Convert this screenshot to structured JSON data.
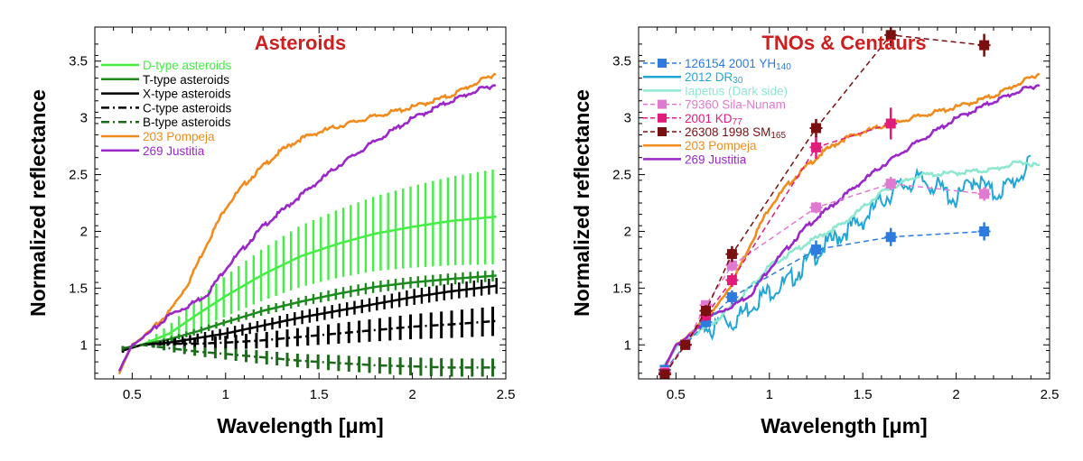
{
  "chart_data": [
    {
      "type": "line",
      "title": "Asteroids",
      "title_color": "#cc1f1f",
      "xlabel": "Wavelength [μm]",
      "ylabel": "Normalized reflectance",
      "xlim": [
        0.3,
        2.5
      ],
      "ylim": [
        0.7,
        3.8
      ],
      "xticks": [
        0.5,
        1,
        1.5,
        2,
        2.5
      ],
      "xtick_labels": [
        "0.5",
        "1",
        "1.5",
        "2",
        "2.5"
      ],
      "yticks": [
        1,
        1.5,
        2,
        2.5,
        3,
        3.5
      ],
      "ytick_labels": [
        "1",
        "1.5",
        "2",
        "2.5",
        "3",
        "3.5"
      ],
      "legend": [
        {
          "label": "D-type asteroids",
          "color": "#44ee44",
          "style": "solid",
          "text_color": "#44ee44"
        },
        {
          "label": "T-type asteroids",
          "color": "#1d8a1d",
          "style": "solid",
          "text_color": "#000000"
        },
        {
          "label": "X-type asteroids",
          "color": "#000000",
          "style": "solid",
          "text_color": "#000000"
        },
        {
          "label": "C-type asteroids",
          "color": "#000000",
          "style": "dashdot",
          "text_color": "#000000"
        },
        {
          "label": "B-type asteroids",
          "color": "#1d6a1d",
          "style": "dashdot",
          "text_color": "#000000"
        },
        {
          "label": "203 Pompeja",
          "color": "#f08c1e",
          "style": "solid",
          "text_color": "#f08c1e"
        },
        {
          "label": "269 Justitia",
          "color": "#9b27c9",
          "style": "solid",
          "text_color": "#9b27c9"
        }
      ],
      "series": [
        {
          "name": "D-type asteroids",
          "color": "#44ee44",
          "kind": "band",
          "x": [
            0.55,
            0.7,
            0.85,
            1.0,
            1.2,
            1.4,
            1.6,
            1.8,
            2.0,
            2.2,
            2.45
          ],
          "y": [
            1.0,
            1.1,
            1.27,
            1.43,
            1.62,
            1.78,
            1.89,
            1.98,
            2.04,
            2.09,
            2.13
          ],
          "err": [
            0.0,
            0.08,
            0.13,
            0.18,
            0.23,
            0.27,
            0.3,
            0.33,
            0.36,
            0.39,
            0.42
          ]
        },
        {
          "name": "T-type asteroids",
          "color": "#1d8a1d",
          "kind": "band",
          "x": [
            0.55,
            0.7,
            0.85,
            1.0,
            1.2,
            1.4,
            1.6,
            1.8,
            2.0,
            2.2,
            2.45
          ],
          "y": [
            1.0,
            1.05,
            1.12,
            1.2,
            1.3,
            1.38,
            1.45,
            1.51,
            1.55,
            1.58,
            1.61
          ],
          "err": [
            0.0,
            0.02,
            0.03,
            0.03,
            0.04,
            0.04,
            0.05,
            0.05,
            0.05,
            0.05,
            0.05
          ]
        },
        {
          "name": "X-type asteroids",
          "color": "#000000",
          "kind": "band",
          "x": [
            0.45,
            0.55,
            0.7,
            0.85,
            1.0,
            1.2,
            1.4,
            1.6,
            1.8,
            2.0,
            2.2,
            2.45
          ],
          "y": [
            0.95,
            1.0,
            1.02,
            1.06,
            1.1,
            1.17,
            1.24,
            1.3,
            1.36,
            1.42,
            1.47,
            1.52
          ],
          "err": [
            0.02,
            0.0,
            0.03,
            0.04,
            0.05,
            0.05,
            0.06,
            0.06,
            0.06,
            0.07,
            0.07,
            0.07
          ]
        },
        {
          "name": "C-type asteroids",
          "color": "#000000",
          "kind": "band",
          "dashed": true,
          "x": [
            0.45,
            0.55,
            0.7,
            0.85,
            1.0,
            1.2,
            1.4,
            1.6,
            1.8,
            2.0,
            2.2,
            2.45
          ],
          "y": [
            0.96,
            1.0,
            1.01,
            1.01,
            1.02,
            1.04,
            1.07,
            1.1,
            1.13,
            1.16,
            1.18,
            1.21
          ],
          "err": [
            0.02,
            0.0,
            0.04,
            0.05,
            0.06,
            0.07,
            0.08,
            0.09,
            0.1,
            0.11,
            0.12,
            0.13
          ]
        },
        {
          "name": "B-type asteroids",
          "color": "#1d6a1d",
          "kind": "band",
          "dashed": true,
          "x": [
            0.45,
            0.55,
            0.7,
            0.85,
            1.0,
            1.2,
            1.4,
            1.6,
            1.8,
            2.0,
            2.2,
            2.45
          ],
          "y": [
            0.97,
            1.0,
            0.97,
            0.94,
            0.92,
            0.89,
            0.86,
            0.84,
            0.82,
            0.81,
            0.8,
            0.8
          ],
          "err": [
            0.02,
            0.0,
            0.03,
            0.04,
            0.05,
            0.06,
            0.06,
            0.07,
            0.07,
            0.08,
            0.08,
            0.08
          ]
        },
        {
          "name": "203 Pompeja",
          "color": "#f08c1e",
          "kind": "line",
          "x": [
            0.43,
            0.5,
            0.6,
            0.7,
            0.8,
            0.9,
            1.0,
            1.1,
            1.2,
            1.3,
            1.4,
            1.5,
            1.6,
            1.8,
            2.0,
            2.2,
            2.35,
            2.45
          ],
          "y": [
            0.75,
            1.0,
            1.13,
            1.3,
            1.55,
            1.9,
            2.22,
            2.42,
            2.58,
            2.72,
            2.82,
            2.88,
            2.93,
            3.02,
            3.1,
            3.2,
            3.32,
            3.4
          ]
        },
        {
          "name": "269 Justitia",
          "color": "#9b27c9",
          "kind": "line",
          "x": [
            0.43,
            0.5,
            0.6,
            0.7,
            0.8,
            0.9,
            1.0,
            1.2,
            1.4,
            1.6,
            1.8,
            2.0,
            2.2,
            2.35,
            2.45
          ],
          "y": [
            0.77,
            1.0,
            1.12,
            1.27,
            1.35,
            1.45,
            1.68,
            2.05,
            2.32,
            2.58,
            2.8,
            3.0,
            3.15,
            3.25,
            3.3
          ]
        }
      ]
    },
    {
      "type": "line",
      "title": "TNOs & Centaurs",
      "title_color": "#cc1f1f",
      "xlabel": "Wavelength [μm]",
      "ylabel": "Normalized reflectance",
      "xlim": [
        0.3,
        2.5
      ],
      "ylim": [
        0.7,
        3.8
      ],
      "xticks": [
        0.5,
        1,
        1.5,
        2,
        2.5
      ],
      "xtick_labels": [
        "0.5",
        "1",
        "1.5",
        "2",
        "2.5"
      ],
      "yticks": [
        1,
        1.5,
        2,
        2.5,
        3,
        3.5
      ],
      "ytick_labels": [
        "1",
        "1.5",
        "2",
        "2.5",
        "3",
        "3.5"
      ],
      "legend": [
        {
          "label": "126154 2001 YH",
          "sub": "140",
          "color": "#2e7be0",
          "style": "dashed-square"
        },
        {
          "label": "2012 DR",
          "sub": "30",
          "color": "#21a6d6",
          "style": "solid"
        },
        {
          "label": "Iapetus (Dark side)",
          "sub": "",
          "color": "#8ee8d0",
          "style": "solid"
        },
        {
          "label": "79360 Sila-Nunam",
          "sub": "",
          "color": "#e07ad0",
          "style": "dashed-square"
        },
        {
          "label": "2001 KD",
          "sub": "77",
          "color": "#e01b7a",
          "style": "dashed-square"
        },
        {
          "label": "26308 1998 SM",
          "sub": "165",
          "color": "#7a0f0f",
          "style": "dashed-square"
        },
        {
          "label": "203 Pompeja",
          "sub": "",
          "color": "#f08c1e",
          "style": "solid"
        },
        {
          "label": "269 Justitia",
          "sub": "",
          "color": "#9b27c9",
          "style": "solid"
        }
      ],
      "series": [
        {
          "name": "2012 DR30",
          "color": "#21a6d6",
          "kind": "noisy",
          "x": [
            0.43,
            0.5,
            0.6,
            0.65,
            0.7,
            0.75,
            0.8,
            0.85,
            0.9,
            1.0,
            1.1,
            1.2,
            1.3,
            1.4,
            1.5,
            1.6,
            1.7,
            1.8,
            1.9,
            2.0,
            2.1,
            2.2,
            2.3,
            2.4
          ],
          "y": [
            0.78,
            0.98,
            1.12,
            1.2,
            1.15,
            1.28,
            1.22,
            1.3,
            1.38,
            1.5,
            1.58,
            1.75,
            1.9,
            2.02,
            2.12,
            2.3,
            2.42,
            2.48,
            2.42,
            2.3,
            2.5,
            2.35,
            2.45,
            2.62
          ]
        },
        {
          "name": "Iapetus (Dark side)",
          "color": "#8ee8d0",
          "kind": "line",
          "x": [
            0.43,
            0.5,
            0.6,
            0.7,
            0.8,
            0.9,
            1.0,
            1.2,
            1.4,
            1.6,
            1.8,
            2.0,
            2.2,
            2.35,
            2.45
          ],
          "y": [
            0.8,
            0.98,
            1.1,
            1.2,
            1.35,
            1.52,
            1.7,
            1.9,
            2.08,
            2.35,
            2.5,
            2.52,
            2.55,
            2.62,
            2.58
          ]
        },
        {
          "name": "203 Pompeja",
          "color": "#f08c1e",
          "kind": "line",
          "x": [
            0.43,
            0.5,
            0.6,
            0.7,
            0.8,
            0.9,
            1.0,
            1.1,
            1.2,
            1.3,
            1.4,
            1.5,
            1.6,
            1.8,
            2.0,
            2.2,
            2.35,
            2.45
          ],
          "y": [
            0.75,
            1.0,
            1.13,
            1.3,
            1.55,
            1.9,
            2.22,
            2.42,
            2.58,
            2.72,
            2.82,
            2.88,
            2.93,
            3.02,
            3.1,
            3.2,
            3.32,
            3.4
          ]
        },
        {
          "name": "269 Justitia",
          "color": "#9b27c9",
          "kind": "line",
          "x": [
            0.43,
            0.5,
            0.6,
            0.7,
            0.8,
            0.9,
            1.0,
            1.2,
            1.4,
            1.6,
            1.8,
            2.0,
            2.2,
            2.35,
            2.45
          ],
          "y": [
            0.77,
            1.0,
            1.12,
            1.27,
            1.35,
            1.45,
            1.68,
            2.05,
            2.32,
            2.58,
            2.8,
            3.0,
            3.15,
            3.25,
            3.3
          ]
        },
        {
          "name": "126154 2001 YH140",
          "color": "#2e7be0",
          "kind": "points",
          "x": [
            0.44,
            0.55,
            0.66,
            0.8,
            1.25,
            1.65,
            2.15
          ],
          "y": [
            0.78,
            1.0,
            1.2,
            1.42,
            1.84,
            1.95,
            2.0
          ],
          "err": [
            0.04,
            0.03,
            0.05,
            0.06,
            0.08,
            0.08,
            0.08
          ]
        },
        {
          "name": "79360 Sila-Nunam",
          "color": "#e07ad0",
          "kind": "points",
          "x": [
            0.44,
            0.55,
            0.66,
            0.8,
            1.25,
            1.65,
            2.15
          ],
          "y": [
            0.76,
            1.0,
            1.35,
            1.7,
            2.21,
            2.42,
            2.33
          ],
          "err": [
            0.03,
            0.03,
            0.04,
            0.05,
            0.05,
            0.06,
            0.06
          ]
        },
        {
          "name": "2001 KD77",
          "color": "#e01b7a",
          "kind": "points",
          "x": [
            0.44,
            0.55,
            0.66,
            0.8,
            1.25,
            1.65
          ],
          "y": [
            0.75,
            1.0,
            1.26,
            1.57,
            2.74,
            2.95
          ],
          "err": [
            0.03,
            0.03,
            0.05,
            0.06,
            0.1,
            0.14
          ]
        },
        {
          "name": "26308 1998 SM165",
          "color": "#7a0f0f",
          "kind": "points",
          "x": [
            0.44,
            0.55,
            0.66,
            0.8,
            1.25,
            1.65,
            2.15
          ],
          "y": [
            0.74,
            1.0,
            1.3,
            1.8,
            2.91,
            3.73,
            3.64
          ],
          "err": [
            0.03,
            0.03,
            0.05,
            0.07,
            0.08,
            0.1,
            0.1
          ]
        }
      ]
    }
  ]
}
